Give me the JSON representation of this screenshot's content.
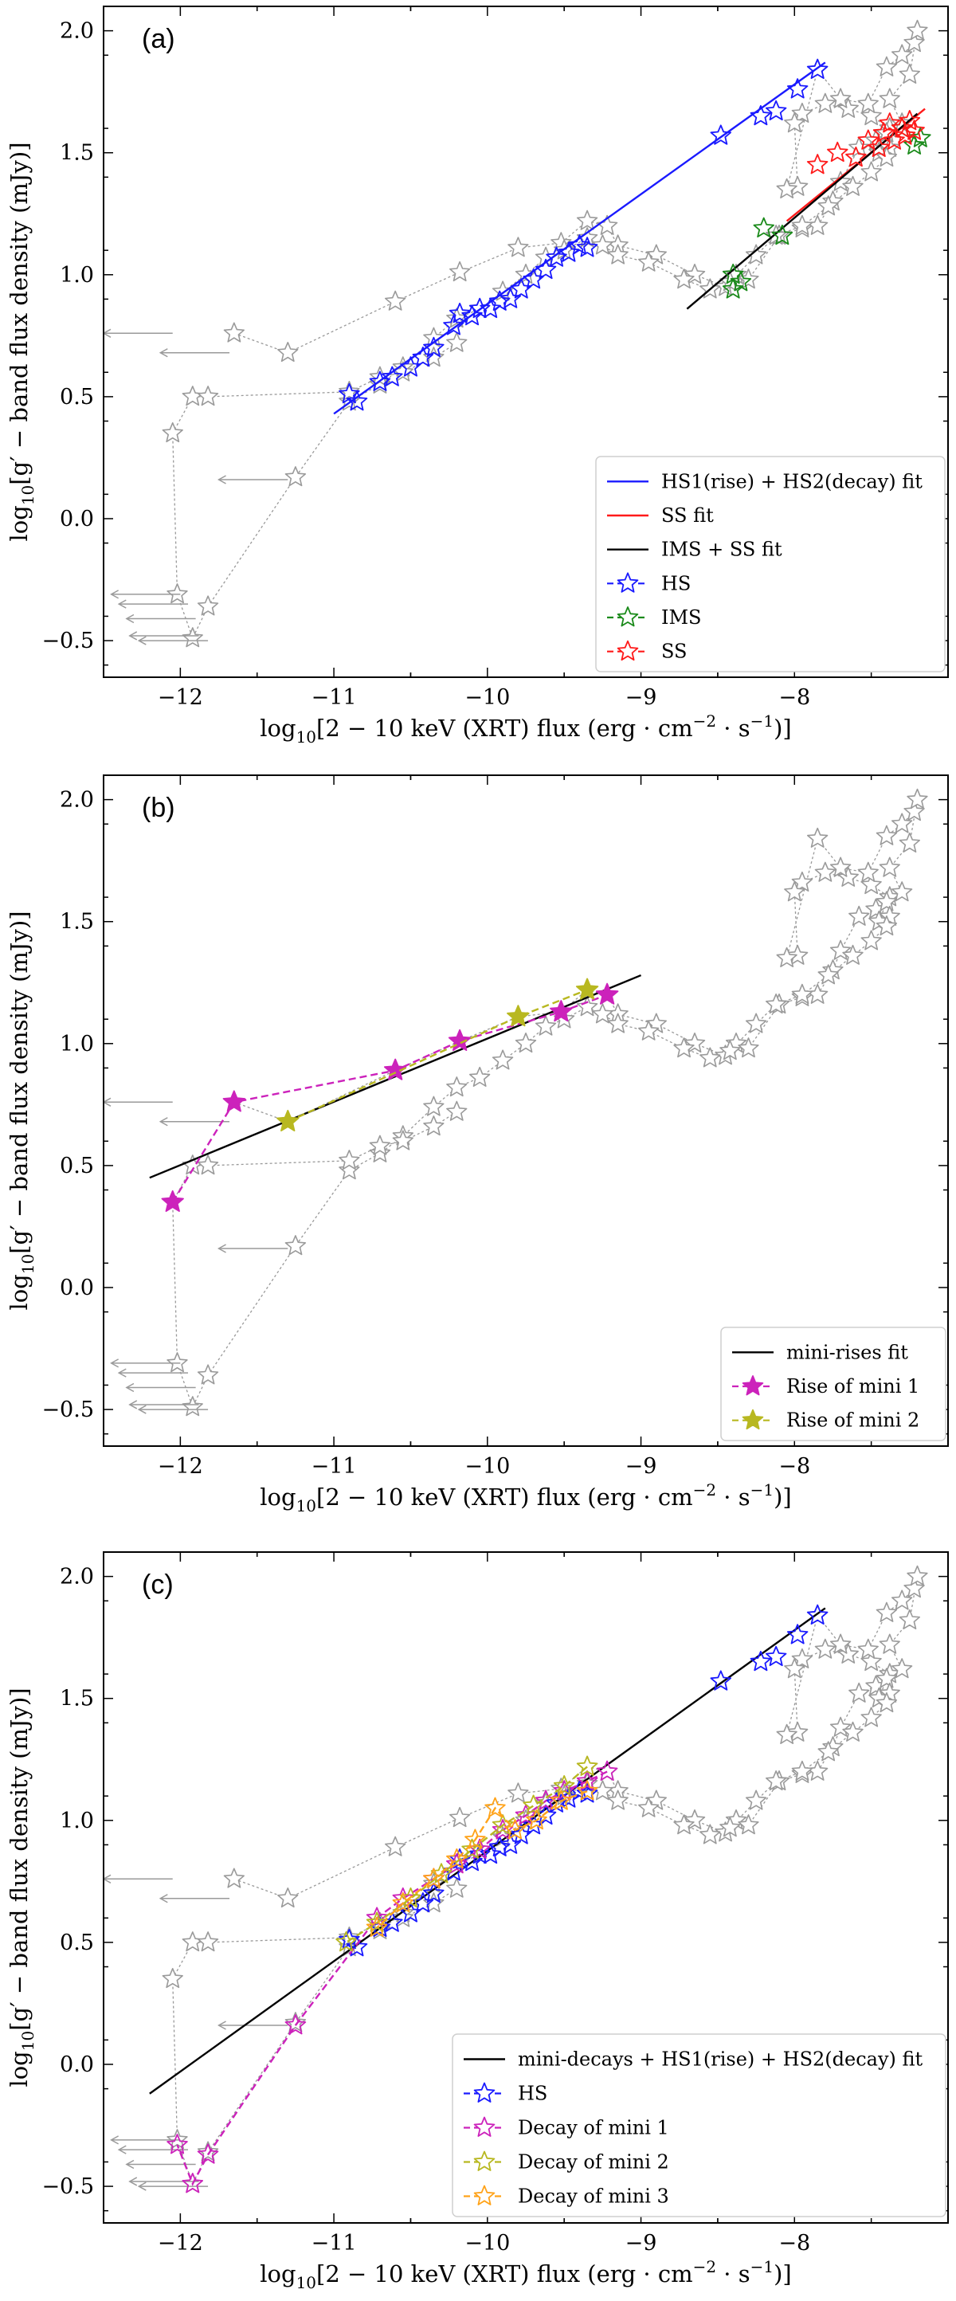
{
  "colors": {
    "grey": "#9a9a9a",
    "blue": "#1a1aff",
    "red": "#ff1a1a",
    "green": "#1a8a1a",
    "black": "#000000",
    "magenta": "#cc22bb",
    "olive": "#b8b820",
    "orange": "#ffa31a"
  },
  "chart_data": [
    {
      "type": "scatter",
      "panel": "(a)",
      "xlabel": "log10[2 − 10 keV (XRT) flux (erg · cm−2 · s−1)]",
      "ylabel": "log10[g′ − band flux density (mJy)]",
      "xlim": [
        -12.5,
        -7.0
      ],
      "ylim": [
        -0.65,
        2.1
      ],
      "xticks": [
        -12,
        -11,
        -10,
        -9,
        -8
      ],
      "yticks": [
        -0.5,
        0.0,
        0.5,
        1.0,
        1.5,
        2.0
      ],
      "xtick_labels": [
        "−12",
        "−11",
        "−10",
        "−9",
        "−8"
      ],
      "ytick_labels": [
        "−0.5",
        "0.0",
        "0.5",
        "1.0",
        "1.5",
        "2.0"
      ],
      "legend_position": "lower-right",
      "legend": [
        {
          "label": "HS1(rise) + HS2(decay) fit",
          "kind": "line",
          "color": "#1a1aff"
        },
        {
          "label": "SS fit",
          "kind": "line",
          "color": "#ff1a1a"
        },
        {
          "label": "IMS + SS fit",
          "kind": "line",
          "color": "#000000"
        },
        {
          "label": "HS",
          "kind": "star",
          "color": "#1a1aff",
          "dashed": true
        },
        {
          "label": "IMS",
          "kind": "star",
          "color": "#1a8a1a",
          "dashed": true
        },
        {
          "label": "SS",
          "kind": "star",
          "color": "#ff1a1a",
          "dashed": true
        }
      ],
      "fits": [
        {
          "name": "HS1(rise) + HS2(decay) fit",
          "color": "#1a1aff",
          "x": [
            -11.0,
            -7.8
          ],
          "y": [
            0.43,
            1.87
          ]
        },
        {
          "name": "SS fit",
          "color": "#ff1a1a",
          "x": [
            -8.05,
            -7.15
          ],
          "y": [
            1.22,
            1.68
          ]
        },
        {
          "name": "IMS + SS fit",
          "color": "#000000",
          "x": [
            -8.7,
            -7.2
          ],
          "y": [
            0.86,
            1.66
          ]
        }
      ],
      "series": [
        {
          "name": "HS",
          "color": "#1a1aff",
          "style": "star-open",
          "x": [
            -10.9,
            -10.85,
            -10.7,
            -10.62,
            -10.5,
            -10.42,
            -10.35,
            -10.22,
            -10.18,
            -10.1,
            -10.05,
            -9.98,
            -9.92,
            -9.85,
            -9.78,
            -9.7,
            -9.62,
            -9.55,
            -9.47,
            -9.4,
            -9.35,
            -8.48,
            -8.22,
            -8.12,
            -7.98,
            -7.85
          ],
          "y": [
            0.51,
            0.48,
            0.56,
            0.58,
            0.62,
            0.66,
            0.7,
            0.79,
            0.84,
            0.83,
            0.86,
            0.86,
            0.89,
            0.9,
            0.94,
            0.98,
            1.02,
            1.07,
            1.09,
            1.12,
            1.11,
            1.57,
            1.65,
            1.67,
            1.76,
            1.84
          ]
        },
        {
          "name": "IMS",
          "color": "#1a8a1a",
          "style": "star-open",
          "x": [
            -8.4,
            -8.35,
            -8.4,
            -8.2,
            -8.08,
            -7.3,
            -7.18,
            -7.22
          ],
          "y": [
            1.0,
            0.97,
            0.94,
            1.19,
            1.16,
            1.6,
            1.56,
            1.53
          ]
        },
        {
          "name": "SS",
          "color": "#ff1a1a",
          "style": "star-open",
          "x": [
            -7.85,
            -7.72,
            -7.6,
            -7.52,
            -7.45,
            -7.42,
            -7.38,
            -7.35,
            -7.3,
            -7.28,
            -7.25,
            -7.22
          ],
          "y": [
            1.45,
            1.5,
            1.48,
            1.55,
            1.52,
            1.58,
            1.62,
            1.55,
            1.6,
            1.57,
            1.63,
            1.59
          ]
        }
      ]
    },
    {
      "type": "scatter",
      "panel": "(b)",
      "xlabel": "log10[2 − 10 keV (XRT) flux (erg · cm−2 · s−1)]",
      "ylabel": "log10[g′ − band flux density (mJy)]",
      "xlim": [
        -12.5,
        -7.0
      ],
      "ylim": [
        -0.65,
        2.1
      ],
      "xticks": [
        -12,
        -11,
        -10,
        -9,
        -8
      ],
      "yticks": [
        -0.5,
        0.0,
        0.5,
        1.0,
        1.5,
        2.0
      ],
      "xtick_labels": [
        "−12",
        "−11",
        "−10",
        "−9",
        "−8"
      ],
      "ytick_labels": [
        "−0.5",
        "0.0",
        "0.5",
        "1.0",
        "1.5",
        "2.0"
      ],
      "legend_position": "lower-right",
      "legend": [
        {
          "label": "mini-rises fit",
          "kind": "line",
          "color": "#000000"
        },
        {
          "label": "Rise of mini 1",
          "kind": "filledstar",
          "color": "#cc22bb",
          "dashed": true
        },
        {
          "label": "Rise of mini 2",
          "kind": "filledstar",
          "color": "#b8b820",
          "dashed": true
        }
      ],
      "fits": [
        {
          "name": "mini-rises fit",
          "color": "#000000",
          "x": [
            -12.2,
            -9.0
          ],
          "y": [
            0.45,
            1.28
          ]
        }
      ],
      "series": [
        {
          "name": "Rise of mini 1",
          "color": "#cc22bb",
          "style": "star-filled",
          "connect": true,
          "x": [
            -12.05,
            -11.65,
            -10.6,
            -10.18,
            -9.52,
            -9.22
          ],
          "y": [
            0.35,
            0.76,
            0.89,
            1.01,
            1.13,
            1.2
          ]
        },
        {
          "name": "Rise of mini 2",
          "color": "#b8b820",
          "style": "star-filled",
          "connect": true,
          "x": [
            -11.3,
            -9.8,
            -9.35
          ],
          "y": [
            0.68,
            1.11,
            1.22
          ]
        }
      ]
    },
    {
      "type": "scatter",
      "panel": "(c)",
      "xlabel": "log10[2 − 10 keV (XRT) flux (erg · cm−2 · s−1)]",
      "ylabel": "log10[g′ − band flux density (mJy)]",
      "xlim": [
        -12.5,
        -7.0
      ],
      "ylim": [
        -0.65,
        2.1
      ],
      "xticks": [
        -12,
        -11,
        -10,
        -9,
        -8
      ],
      "yticks": [
        -0.5,
        0.0,
        0.5,
        1.0,
        1.5,
        2.0
      ],
      "xtick_labels": [
        "−12",
        "−11",
        "−10",
        "−9",
        "−8"
      ],
      "ytick_labels": [
        "−0.5",
        "0.0",
        "0.5",
        "1.0",
        "1.5",
        "2.0"
      ],
      "legend_position": "lower-right",
      "legend": [
        {
          "label": "mini-decays + HS1(rise) + HS2(decay) fit",
          "kind": "line",
          "color": "#000000"
        },
        {
          "label": "HS",
          "kind": "star",
          "color": "#1a1aff",
          "dashed": true
        },
        {
          "label": "Decay of mini 1",
          "kind": "star",
          "color": "#cc22bb",
          "dashed": true
        },
        {
          "label": "Decay of mini 2",
          "kind": "star",
          "color": "#b8b820",
          "dashed": true
        },
        {
          "label": "Decay of mini 3",
          "kind": "star",
          "color": "#ffa31a",
          "dashed": true
        }
      ],
      "fits": [
        {
          "name": "mini-decays + HS1(rise) + HS2(decay) fit",
          "color": "#000000",
          "x": [
            -12.2,
            -7.8
          ],
          "y": [
            -0.12,
            1.87
          ]
        }
      ],
      "series": [
        {
          "name": "HS",
          "color": "#1a1aff",
          "style": "star-open",
          "x": [
            -10.9,
            -10.85,
            -10.7,
            -10.62,
            -10.5,
            -10.42,
            -10.35,
            -10.22,
            -10.18,
            -10.1,
            -10.05,
            -9.98,
            -9.92,
            -9.85,
            -9.78,
            -9.7,
            -9.62,
            -9.55,
            -9.47,
            -9.4,
            -9.35,
            -8.48,
            -8.22,
            -8.12,
            -7.98,
            -7.85
          ],
          "y": [
            0.51,
            0.48,
            0.56,
            0.58,
            0.62,
            0.66,
            0.7,
            0.79,
            0.84,
            0.83,
            0.86,
            0.86,
            0.89,
            0.9,
            0.94,
            0.98,
            1.02,
            1.07,
            1.09,
            1.12,
            1.11,
            1.57,
            1.65,
            1.67,
            1.76,
            1.84
          ]
        },
        {
          "name": "Decay of mini 1",
          "color": "#cc22bb",
          "style": "star-open",
          "connect": true,
          "x": [
            -9.22,
            -9.35,
            -9.5,
            -9.62,
            -9.75,
            -9.9,
            -10.05,
            -10.2,
            -10.35,
            -10.55,
            -10.72,
            -11.25,
            -11.82,
            -11.92,
            -12.02
          ],
          "y": [
            1.2,
            1.16,
            1.12,
            1.08,
            1.02,
            0.96,
            0.88,
            0.82,
            0.76,
            0.68,
            0.6,
            0.16,
            -0.37,
            -0.49,
            -0.33
          ]
        },
        {
          "name": "Decay of mini 2",
          "color": "#b8b820",
          "style": "star-open",
          "connect": true,
          "x": [
            -9.35,
            -9.5,
            -9.7,
            -9.9,
            -10.1,
            -10.3,
            -10.5,
            -10.72,
            -10.92
          ],
          "y": [
            1.22,
            1.14,
            1.06,
            0.98,
            0.88,
            0.78,
            0.68,
            0.58,
            0.5
          ]
        },
        {
          "name": "Decay of mini 3",
          "color": "#ffa31a",
          "style": "star-open",
          "connect": true,
          "x": [
            -9.35,
            -9.52,
            -9.68,
            -9.82,
            -9.95,
            -10.08,
            -10.2,
            -10.35,
            -10.55,
            -10.72
          ],
          "y": [
            1.12,
            1.08,
            1.0,
            0.96,
            1.05,
            0.92,
            0.84,
            0.76,
            0.66,
            0.56
          ]
        }
      ]
    }
  ],
  "background_track": {
    "color": "#9a9a9a",
    "x": [
      -11.65,
      -11.3,
      -10.6,
      -10.18,
      -9.8,
      -9.52,
      -9.35,
      -9.22,
      -9.15,
      -8.9,
      -8.65,
      -8.45,
      -8.38,
      -8.3,
      -8.1,
      -7.95,
      -7.85,
      -7.75,
      -7.7,
      -7.58,
      -7.47,
      -7.45,
      -7.4,
      -7.38,
      -7.5,
      -7.65,
      -7.8,
      -7.95,
      -8.0,
      -7.98,
      -8.05,
      -7.85,
      -7.7,
      -7.52,
      -7.4,
      -7.3,
      -7.22,
      -7.2,
      -7.25,
      -7.38,
      -7.3,
      -7.4,
      -7.38,
      -7.4,
      -7.5,
      -7.62,
      -7.78,
      -7.95,
      -8.12,
      -8.25,
      -8.42,
      -8.55,
      -8.72,
      -8.95,
      -9.15,
      -9.25,
      -9.35,
      -9.5,
      -9.62,
      -9.75,
      -9.9,
      -10.05,
      -10.2,
      -10.35,
      -10.55,
      -10.7,
      -10.9,
      -11.25,
      -11.82,
      -11.92,
      -12.02,
      -12.05,
      -11.92,
      -11.82,
      -10.9,
      -10.7,
      -10.55,
      -10.35,
      -10.2
    ],
    "y": [
      0.76,
      0.68,
      0.89,
      1.01,
      1.11,
      1.13,
      1.22,
      1.2,
      1.12,
      1.08,
      1.0,
      0.95,
      1.0,
      0.98,
      1.16,
      1.19,
      1.2,
      1.3,
      1.38,
      1.52,
      1.55,
      1.5,
      1.58,
      1.6,
      1.65,
      1.68,
      1.7,
      1.66,
      1.62,
      1.36,
      1.35,
      1.84,
      1.72,
      1.7,
      1.85,
      1.9,
      1.95,
      2.0,
      1.82,
      1.72,
      1.62,
      1.58,
      1.52,
      1.48,
      1.42,
      1.36,
      1.28,
      1.2,
      1.16,
      1.08,
      0.97,
      0.94,
      0.98,
      1.05,
      1.08,
      1.12,
      1.15,
      1.1,
      1.07,
      1.0,
      0.93,
      0.86,
      0.82,
      0.74,
      0.62,
      0.55,
      0.48,
      0.17,
      -0.36,
      -0.49,
      -0.31,
      0.35,
      0.5,
      0.5,
      0.52,
      0.58,
      0.6,
      0.66,
      0.72
    ],
    "upper_limits": [
      {
        "x": -12.05,
        "y": 0.76
      },
      {
        "x": -11.68,
        "y": 0.68
      },
      {
        "x": -11.3,
        "y": 0.16
      },
      {
        "x": -12.0,
        "y": -0.31
      },
      {
        "x": -11.95,
        "y": -0.35
      },
      {
        "x": -11.9,
        "y": -0.41
      },
      {
        "x": -11.88,
        "y": -0.48
      },
      {
        "x": -11.82,
        "y": -0.5
      }
    ]
  }
}
